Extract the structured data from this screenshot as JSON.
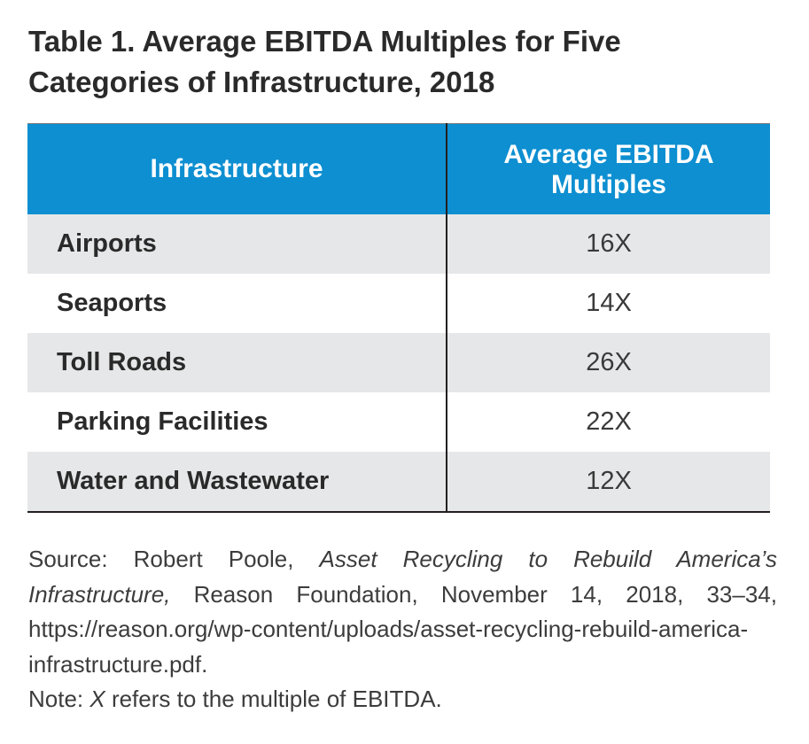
{
  "title": {
    "line1": "Table 1. Average EBITDA Multiples for Five",
    "line2": "Categories of Infrastructure, 2018"
  },
  "table": {
    "headers": {
      "infrastructure": "Infrastructure",
      "multiples_line1": "Average EBITDA",
      "multiples_line2": "Multiples"
    },
    "rows": [
      {
        "name": "Airports",
        "value": "16X"
      },
      {
        "name": "Seaports",
        "value": "14X"
      },
      {
        "name": "Toll Roads",
        "value": "26X"
      },
      {
        "name": "Parking Facilities",
        "value": "22X"
      },
      {
        "name": "Water and Wastewater",
        "value": "12X"
      }
    ]
  },
  "source": {
    "prefix": "Source: Robert Poole, ",
    "book_title": "Asset Recycling to Rebuild America’s Infrastructure,",
    "rest": " Reason Foundation, November 14, 2018, 33–34, https://reason.org/wp-content/uploads/asset-recycling-rebuild-america-infrastructure.pdf."
  },
  "note": {
    "prefix": "Note: ",
    "symbol": "X",
    "rest": " refers to the multiple of EBITDA."
  },
  "colors": {
    "header_bg": "#0d8fd1",
    "header_text": "#ffffff",
    "shaded_row": "#e6e7e8",
    "text": "#231f20"
  }
}
